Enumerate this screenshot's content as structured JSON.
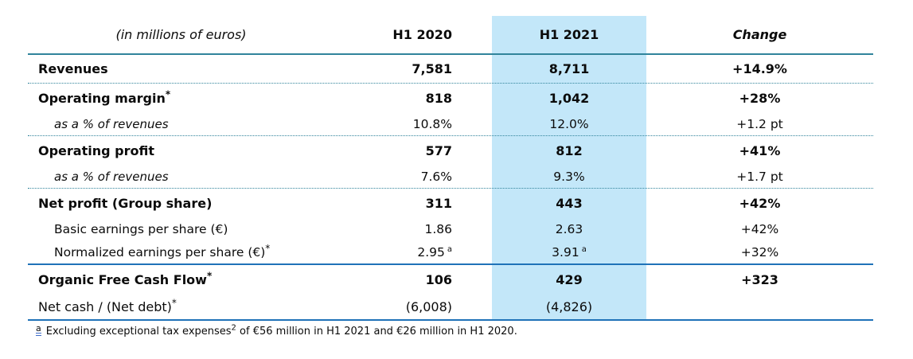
{
  "header": {
    "unit_label": "(in millions of euros)",
    "col_2020": "H1 2020",
    "col_2021": "H1 2021",
    "col_change": "Change"
  },
  "rows": [
    {
      "label": "Revenues",
      "kind": "major",
      "values_bold": true,
      "border": "dotted",
      "v2020": "7,581",
      "v2021": "8,711",
      "change": "+14.9%"
    },
    {
      "label": "Operating margin",
      "label_sup": "*",
      "kind": "major",
      "values_bold": true,
      "border": "none",
      "v2020": "818",
      "v2021": "1,042",
      "change": "+28%"
    },
    {
      "label": "as a % of revenues",
      "kind": "subitalic",
      "values_bold": false,
      "border": "dotted",
      "v2020": "10.8%",
      "v2021": "12.0%",
      "change": "+1.2 pt"
    },
    {
      "label": "Operating profit",
      "kind": "major",
      "values_bold": true,
      "border": "none",
      "v2020": "577",
      "v2021": "812",
      "change": "+41%"
    },
    {
      "label": "as a % of revenues",
      "kind": "subitalic",
      "values_bold": false,
      "border": "dotted",
      "v2020": "7.6%",
      "v2021": "9.3%",
      "change": "+1.7 pt"
    },
    {
      "label": "Net profit (Group share)",
      "kind": "major",
      "values_bold": true,
      "border": "none",
      "v2020": "311",
      "v2021": "443",
      "change": "+42%"
    },
    {
      "label": "Basic earnings per share (€)",
      "kind": "sub",
      "values_bold": false,
      "border": "none",
      "v2020": "1.86",
      "v2021": "2.63",
      "change": "+42%"
    },
    {
      "label": "Normalized earnings per share (€)",
      "label_sup": "*",
      "kind": "sub",
      "values_bold": false,
      "border": "solid",
      "v2020": "2.95",
      "v2020_sup": "a",
      "v2021": "3.91",
      "v2021_sup": "a",
      "change": "+32%"
    },
    {
      "label": "Organic Free Cash Flow",
      "label_sup": "*",
      "kind": "major",
      "values_bold": true,
      "border": "none",
      "v2020": "106",
      "v2021": "429",
      "change": "+323"
    },
    {
      "label": "Net cash / (Net debt)",
      "label_sup": "*",
      "kind": "netcash",
      "values_bold": false,
      "border": "solid",
      "v2020": "(6,008)",
      "v2021": "(4,826)",
      "change": ""
    }
  ],
  "footnote": {
    "marker": "a",
    "text_before": "Excluding exceptional tax expenses",
    "sup": "2",
    "text_after": " of €56 million in H1 2021 and €26 million in H1 2020."
  },
  "colors": {
    "highlight": "#C3E7F9",
    "teal_line": "#31849B",
    "blue_line": "#1F72B8"
  }
}
